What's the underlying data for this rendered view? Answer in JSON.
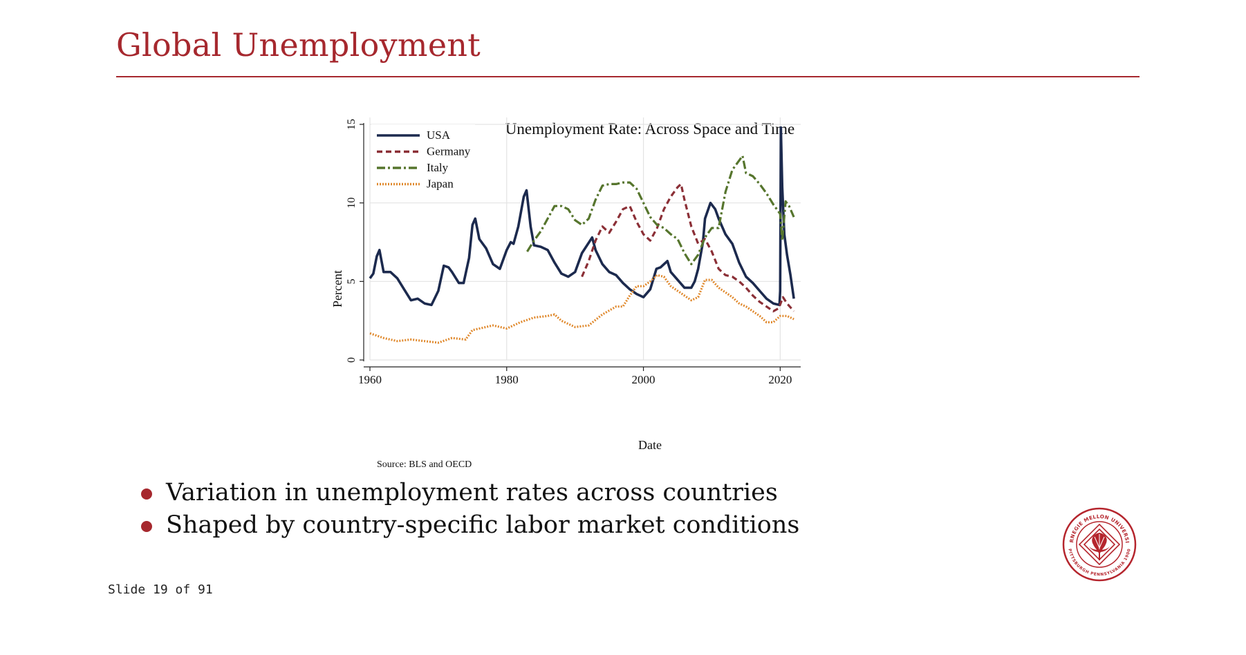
{
  "slide": {
    "title": "Global Unemployment",
    "counter": "Slide 19 of 91",
    "bullets": [
      "Variation in unemployment rates across countries",
      "Shaped by country-specific labor market conditions"
    ],
    "seal_text": {
      "top": "CARNEGIE MELLON UNIVERSITY",
      "bottom": "PITTSBURGH PENNSYLVANIA 1900"
    },
    "colors": {
      "accent": "#a6282e"
    }
  },
  "chart_data": {
    "type": "line",
    "title": "Unemployment Rate: Across Space and Time",
    "xlabel": "Date",
    "ylabel": "Percent",
    "note": "Source: BLS and OECD",
    "xlim": [
      1960,
      2023
    ],
    "ylim": [
      0,
      15
    ],
    "xticks": [
      1960,
      1980,
      2000,
      2020
    ],
    "yticks": [
      0,
      5,
      10,
      15
    ],
    "grid": true,
    "legend_position": "top-left",
    "series": [
      {
        "name": "USA",
        "color": "#1c2a4e",
        "dash": "solid",
        "x": [
          1960,
          1960.5,
          1961,
          1961.4,
          1962,
          1963,
          1964,
          1965,
          1966,
          1967,
          1968,
          1969,
          1970,
          1970.8,
          1971.5,
          1972,
          1973,
          1973.7,
          1974.5,
          1975,
          1975.4,
          1976,
          1977,
          1978,
          1979,
          1980,
          1980.6,
          1981,
          1981.7,
          1982.5,
          1982.9,
          1983.5,
          1984,
          1985,
          1986,
          1987,
          1988,
          1989,
          1990,
          1991,
          1992.5,
          1993,
          1994,
          1995,
          1996,
          1997,
          1998,
          1999,
          2000,
          2001,
          2001.9,
          2002.5,
          2003.5,
          2004,
          2005,
          2006,
          2007,
          2007.5,
          2008,
          2008.7,
          2009,
          2009.8,
          2010.5,
          2011,
          2012,
          2013,
          2014,
          2015,
          2016,
          2017,
          2018,
          2019,
          2019.9,
          2020.0,
          2020.1,
          2020.3,
          2020.6,
          2021,
          2021.5,
          2022
        ],
        "y": [
          5.2,
          5.5,
          6.6,
          7.0,
          5.6,
          5.6,
          5.2,
          4.5,
          3.8,
          3.9,
          3.6,
          3.5,
          4.4,
          6.0,
          5.9,
          5.6,
          4.9,
          4.9,
          6.5,
          8.6,
          9.0,
          7.7,
          7.1,
          6.1,
          5.8,
          7.0,
          7.5,
          7.4,
          8.5,
          10.4,
          10.8,
          8.5,
          7.3,
          7.2,
          7.0,
          6.2,
          5.5,
          5.3,
          5.6,
          6.8,
          7.8,
          7.0,
          6.1,
          5.6,
          5.4,
          4.9,
          4.5,
          4.2,
          4.0,
          4.5,
          5.8,
          5.9,
          6.3,
          5.6,
          5.1,
          4.6,
          4.6,
          5.0,
          5.8,
          7.5,
          9.0,
          10.0,
          9.6,
          9.0,
          8.0,
          7.4,
          6.2,
          5.3,
          4.9,
          4.4,
          3.9,
          3.6,
          3.5,
          4.4,
          14.8,
          11.0,
          8.0,
          6.7,
          5.4,
          3.9
        ]
      },
      {
        "name": "Germany",
        "color": "#8b2f36",
        "dash": "8,5",
        "x": [
          1991,
          1992,
          1993,
          1994,
          1995,
          1996,
          1997,
          1998,
          1999,
          2000,
          2001,
          2002,
          2003,
          2004,
          2005,
          2005.5,
          2006,
          2007,
          2008,
          2009,
          2010,
          2011,
          2012,
          2013,
          2014,
          2015,
          2016,
          2017,
          2018,
          2019,
          2019.8,
          2020.4,
          2021,
          2022
        ],
        "y": [
          5.3,
          6.3,
          7.6,
          8.5,
          8.1,
          8.8,
          9.6,
          9.8,
          8.8,
          8.0,
          7.6,
          8.4,
          9.6,
          10.4,
          11.0,
          11.2,
          10.2,
          8.5,
          7.4,
          7.7,
          6.9,
          5.8,
          5.4,
          5.3,
          5.0,
          4.6,
          4.1,
          3.7,
          3.4,
          3.1,
          3.3,
          4.0,
          3.6,
          3.1
        ]
      },
      {
        "name": "Italy",
        "color": "#56752d",
        "dash": "12,4,3,4",
        "x": [
          1983,
          1984,
          1985,
          1986,
          1987,
          1988,
          1989,
          1990,
          1991,
          1992,
          1993,
          1994,
          1995,
          1996,
          1997,
          1998,
          1999,
          2000,
          2001,
          2002,
          2003,
          2004,
          2005,
          2006,
          2007,
          2008,
          2009,
          2010,
          2011,
          2012,
          2013,
          2014,
          2014.5,
          2015,
          2016,
          2017,
          2018,
          2019,
          2020,
          2020.3,
          2020.8,
          2021.3,
          2022
        ],
        "y": [
          6.9,
          7.6,
          8.2,
          9.0,
          9.8,
          9.8,
          9.6,
          8.9,
          8.6,
          9.0,
          10.2,
          11.1,
          11.2,
          11.2,
          11.3,
          11.3,
          10.9,
          10.0,
          9.1,
          8.6,
          8.4,
          8.0,
          7.7,
          6.8,
          6.1,
          6.7,
          7.8,
          8.4,
          8.4,
          10.7,
          12.1,
          12.7,
          13.0,
          11.9,
          11.7,
          11.2,
          10.6,
          9.9,
          9.3,
          7.6,
          10.1,
          9.8,
          9.1
        ]
      },
      {
        "name": "Japan",
        "color": "#e08a2f",
        "dash": "2,2",
        "x": [
          1960,
          1962,
          1964,
          1966,
          1968,
          1970,
          1972,
          1974,
          1975,
          1976,
          1978,
          1980,
          1982,
          1984,
          1986,
          1987,
          1988,
          1990,
          1992,
          1994,
          1996,
          1997,
          1998,
          1999,
          2000,
          2001,
          2002,
          2003,
          2004,
          2005,
          2006,
          2007,
          2008,
          2009,
          2010,
          2011,
          2012,
          2013,
          2014,
          2015,
          2016,
          2017,
          2018,
          2019,
          2020,
          2021,
          2022
        ],
        "y": [
          1.7,
          1.4,
          1.2,
          1.3,
          1.2,
          1.1,
          1.4,
          1.3,
          1.9,
          2.0,
          2.2,
          2.0,
          2.4,
          2.7,
          2.8,
          2.9,
          2.5,
          2.1,
          2.2,
          2.9,
          3.4,
          3.4,
          4.1,
          4.7,
          4.7,
          5.0,
          5.4,
          5.3,
          4.7,
          4.4,
          4.1,
          3.8,
          4.0,
          5.1,
          5.1,
          4.6,
          4.3,
          4.0,
          3.6,
          3.4,
          3.1,
          2.8,
          2.4,
          2.4,
          2.8,
          2.8,
          2.6
        ]
      }
    ]
  }
}
